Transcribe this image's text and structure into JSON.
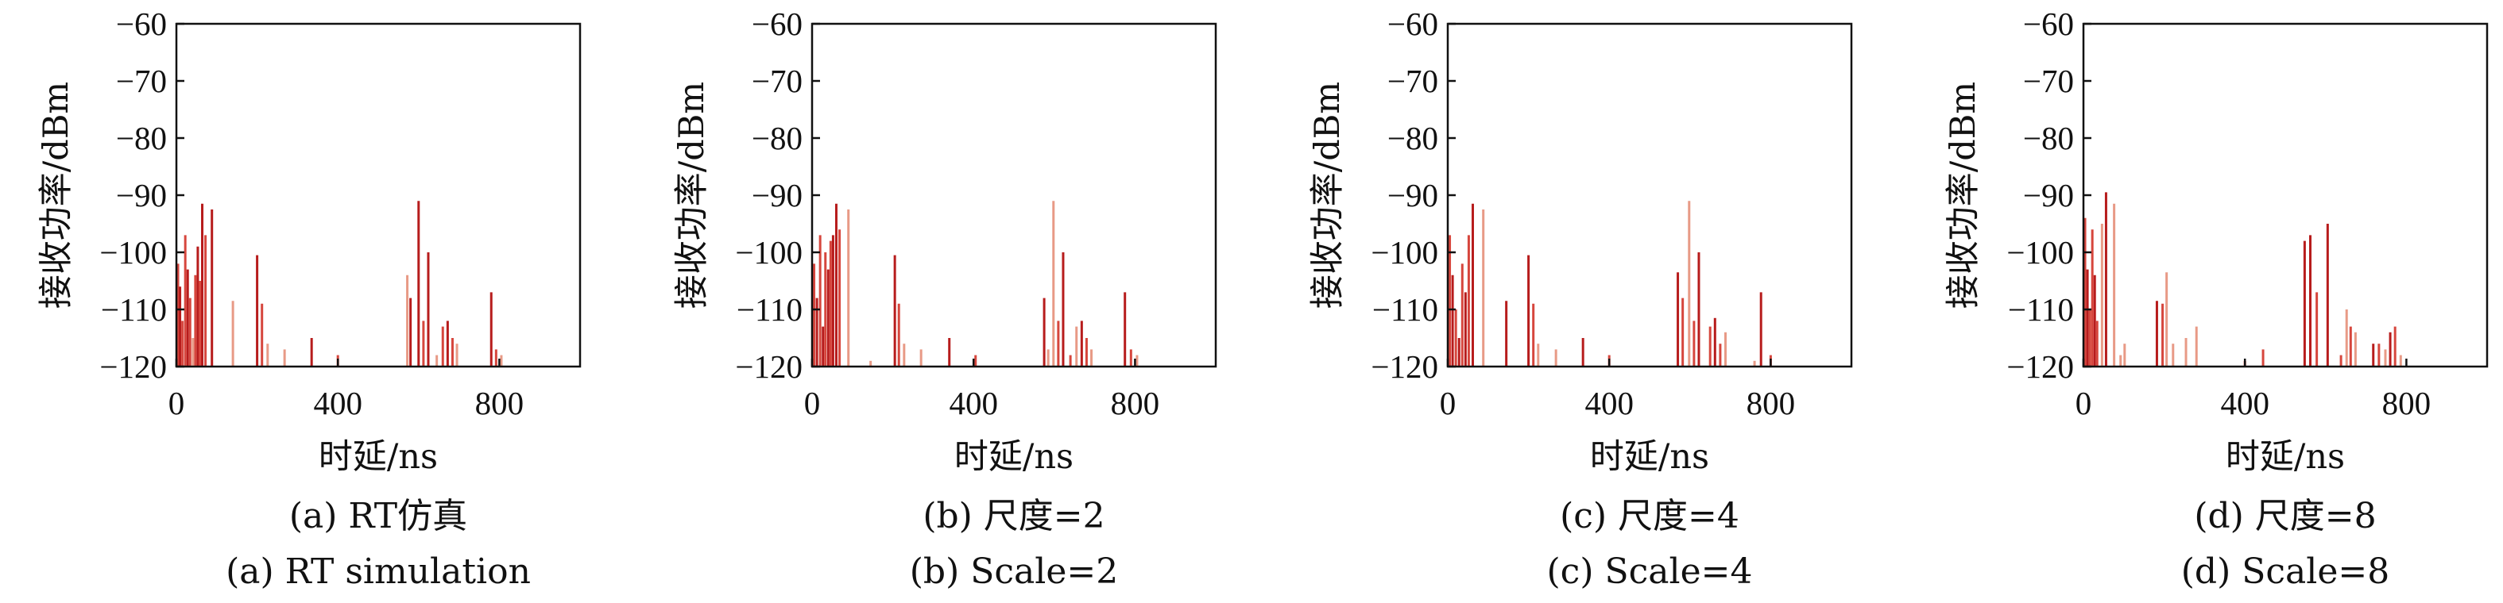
{
  "chart_data": [
    {
      "type": "bar",
      "xlabel": "时延/ns",
      "ylabel": "接收功率/dBm",
      "xlim": [
        0,
        1000
      ],
      "ylim": [
        -120,
        -60
      ],
      "xticks": [
        0,
        400,
        800
      ],
      "yticks": [
        -120,
        -110,
        -100,
        -90,
        -80,
        -70,
        -60
      ],
      "grid": false,
      "caption_cn": "(a) RT仿真",
      "caption_en": "(a) RT simulation",
      "colors": [
        "#d6463d",
        "#b71c1c",
        "#e89a86"
      ],
      "bars": [
        {
          "x": 4,
          "y": -102,
          "c": 0
        },
        {
          "x": 9,
          "y": -106,
          "c": 1
        },
        {
          "x": 15,
          "y": -112,
          "c": 0
        },
        {
          "x": 22,
          "y": -97,
          "c": 0
        },
        {
          "x": 28,
          "y": -103,
          "c": 1
        },
        {
          "x": 34,
          "y": -108,
          "c": 0
        },
        {
          "x": 41,
          "y": -115,
          "c": 2
        },
        {
          "x": 47,
          "y": -104,
          "c": 0
        },
        {
          "x": 53,
          "y": -99,
          "c": 1
        },
        {
          "x": 58,
          "y": -105,
          "c": 0
        },
        {
          "x": 64,
          "y": -91.5,
          "c": 1
        },
        {
          "x": 72,
          "y": -97,
          "c": 0
        },
        {
          "x": 88,
          "y": -92.5,
          "c": 1
        },
        {
          "x": 140,
          "y": -108.5,
          "c": 2
        },
        {
          "x": 200,
          "y": -100.5,
          "c": 1
        },
        {
          "x": 212,
          "y": -109,
          "c": 0
        },
        {
          "x": 226,
          "y": -116,
          "c": 2
        },
        {
          "x": 268,
          "y": -117,
          "c": 2
        },
        {
          "x": 335,
          "y": -115,
          "c": 1
        },
        {
          "x": 400,
          "y": -118,
          "c": 0
        },
        {
          "x": 572,
          "y": -104,
          "c": 2
        },
        {
          "x": 580,
          "y": -108,
          "c": 1
        },
        {
          "x": 600,
          "y": -91,
          "c": 1
        },
        {
          "x": 612,
          "y": -112,
          "c": 0
        },
        {
          "x": 624,
          "y": -100,
          "c": 1
        },
        {
          "x": 645,
          "y": -118,
          "c": 2
        },
        {
          "x": 660,
          "y": -113,
          "c": 0
        },
        {
          "x": 672,
          "y": -112,
          "c": 1
        },
        {
          "x": 684,
          "y": -115,
          "c": 0
        },
        {
          "x": 695,
          "y": -116,
          "c": 2
        },
        {
          "x": 780,
          "y": -107,
          "c": 1
        },
        {
          "x": 792,
          "y": -117,
          "c": 0
        },
        {
          "x": 805,
          "y": -118,
          "c": 2
        }
      ]
    },
    {
      "type": "bar",
      "xlabel": "时延/ns",
      "ylabel": "接收功率/dBm",
      "xlim": [
        0,
        1000
      ],
      "ylim": [
        -120,
        -60
      ],
      "xticks": [
        0,
        400,
        800
      ],
      "yticks": [
        -120,
        -110,
        -100,
        -90,
        -80,
        -70,
        -60
      ],
      "grid": false,
      "caption_cn": "(b) 尺度=2",
      "caption_en": "(b) Scale=2",
      "colors": [
        "#d6463d",
        "#b71c1c",
        "#e89a86"
      ],
      "bars": [
        {
          "x": 5,
          "y": -102,
          "c": 0
        },
        {
          "x": 12,
          "y": -108,
          "c": 1
        },
        {
          "x": 20,
          "y": -97,
          "c": 0
        },
        {
          "x": 27,
          "y": -113,
          "c": 1
        },
        {
          "x": 33,
          "y": -100,
          "c": 0
        },
        {
          "x": 40,
          "y": -103,
          "c": 1
        },
        {
          "x": 46,
          "y": -98,
          "c": 0
        },
        {
          "x": 52,
          "y": -97,
          "c": 1
        },
        {
          "x": 60,
          "y": -91.5,
          "c": 1
        },
        {
          "x": 68,
          "y": -96,
          "c": 0
        },
        {
          "x": 90,
          "y": -92.5,
          "c": 2
        },
        {
          "x": 145,
          "y": -119,
          "c": 2
        },
        {
          "x": 205,
          "y": -100.5,
          "c": 1
        },
        {
          "x": 215,
          "y": -109,
          "c": 0
        },
        {
          "x": 228,
          "y": -116,
          "c": 2
        },
        {
          "x": 270,
          "y": -117,
          "c": 2
        },
        {
          "x": 340,
          "y": -115,
          "c": 1
        },
        {
          "x": 405,
          "y": -118,
          "c": 0
        },
        {
          "x": 575,
          "y": -108,
          "c": 1
        },
        {
          "x": 585,
          "y": -117,
          "c": 2
        },
        {
          "x": 598,
          "y": -91,
          "c": 2
        },
        {
          "x": 610,
          "y": -112,
          "c": 0
        },
        {
          "x": 622,
          "y": -100,
          "c": 1
        },
        {
          "x": 640,
          "y": -118,
          "c": 0
        },
        {
          "x": 655,
          "y": -113,
          "c": 2
        },
        {
          "x": 668,
          "y": -112,
          "c": 1
        },
        {
          "x": 680,
          "y": -115,
          "c": 0
        },
        {
          "x": 692,
          "y": -117,
          "c": 2
        },
        {
          "x": 775,
          "y": -107,
          "c": 1
        },
        {
          "x": 790,
          "y": -117,
          "c": 0
        },
        {
          "x": 805,
          "y": -118,
          "c": 2
        }
      ]
    },
    {
      "type": "bar",
      "xlabel": "时延/ns",
      "ylabel": "接收功率/dBm",
      "xlim": [
        0,
        1000
      ],
      "ylim": [
        -120,
        -60
      ],
      "xticks": [
        0,
        400,
        800
      ],
      "yticks": [
        -120,
        -110,
        -100,
        -90,
        -80,
        -70,
        -60
      ],
      "grid": false,
      "caption_cn": "(c) 尺度=4",
      "caption_en": "(c) Scale=4",
      "colors": [
        "#d6463d",
        "#b71c1c",
        "#e89a86"
      ],
      "bars": [
        {
          "x": 5,
          "y": -97,
          "c": 0
        },
        {
          "x": 12,
          "y": -104,
          "c": 1
        },
        {
          "x": 20,
          "y": -110,
          "c": 0
        },
        {
          "x": 28,
          "y": -115,
          "c": 1
        },
        {
          "x": 36,
          "y": -102,
          "c": 0
        },
        {
          "x": 44,
          "y": -107,
          "c": 1
        },
        {
          "x": 52,
          "y": -97,
          "c": 0
        },
        {
          "x": 62,
          "y": -91.5,
          "c": 1
        },
        {
          "x": 88,
          "y": -92.5,
          "c": 2
        },
        {
          "x": 145,
          "y": -108.5,
          "c": 1
        },
        {
          "x": 200,
          "y": -100.5,
          "c": 1
        },
        {
          "x": 212,
          "y": -109,
          "c": 0
        },
        {
          "x": 224,
          "y": -116,
          "c": 2
        },
        {
          "x": 268,
          "y": -117,
          "c": 2
        },
        {
          "x": 335,
          "y": -115,
          "c": 1
        },
        {
          "x": 400,
          "y": -118,
          "c": 0
        },
        {
          "x": 570,
          "y": -103.5,
          "c": 1
        },
        {
          "x": 582,
          "y": -108,
          "c": 0
        },
        {
          "x": 598,
          "y": -91,
          "c": 2
        },
        {
          "x": 610,
          "y": -112,
          "c": 0
        },
        {
          "x": 622,
          "y": -100,
          "c": 1
        },
        {
          "x": 650,
          "y": -113,
          "c": 0
        },
        {
          "x": 662,
          "y": -111.5,
          "c": 1
        },
        {
          "x": 675,
          "y": -116,
          "c": 0
        },
        {
          "x": 688,
          "y": -114,
          "c": 2
        },
        {
          "x": 760,
          "y": -119,
          "c": 2
        },
        {
          "x": 776,
          "y": -107,
          "c": 1
        },
        {
          "x": 800,
          "y": -118,
          "c": 0
        }
      ]
    },
    {
      "type": "bar",
      "xlabel": "时延/ns",
      "ylabel": "接收功率/dBm",
      "xlim": [
        0,
        1000
      ],
      "ylim": [
        -120,
        -60
      ],
      "xticks": [
        0,
        400,
        800
      ],
      "yticks": [
        -120,
        -110,
        -100,
        -90,
        -80,
        -70,
        -60
      ],
      "grid": false,
      "caption_cn": "(d) 尺度=8",
      "caption_en": "(d) Scale=8",
      "colors": [
        "#d6463d",
        "#b71c1c",
        "#e89a86"
      ],
      "bars": [
        {
          "x": 4,
          "y": -94,
          "c": 0
        },
        {
          "x": 10,
          "y": -103,
          "c": 1
        },
        {
          "x": 16,
          "y": -110,
          "c": 0
        },
        {
          "x": 22,
          "y": -96,
          "c": 0
        },
        {
          "x": 28,
          "y": -104,
          "c": 1
        },
        {
          "x": 34,
          "y": -112,
          "c": 0
        },
        {
          "x": 46,
          "y": -95,
          "c": 2
        },
        {
          "x": 56,
          "y": -89.5,
          "c": 1
        },
        {
          "x": 76,
          "y": -91.5,
          "c": 2
        },
        {
          "x": 92,
          "y": -118,
          "c": 2
        },
        {
          "x": 102,
          "y": -116,
          "c": 2
        },
        {
          "x": 182,
          "y": -108.5,
          "c": 1
        },
        {
          "x": 196,
          "y": -109,
          "c": 0
        },
        {
          "x": 206,
          "y": -103.5,
          "c": 2
        },
        {
          "x": 222,
          "y": -116,
          "c": 2
        },
        {
          "x": 254,
          "y": -115,
          "c": 2
        },
        {
          "x": 280,
          "y": -113,
          "c": 2
        },
        {
          "x": 400,
          "y": -119,
          "c": 0
        },
        {
          "x": 445,
          "y": -117,
          "c": 0
        },
        {
          "x": 548,
          "y": -98,
          "c": 1
        },
        {
          "x": 562,
          "y": -97,
          "c": 1
        },
        {
          "x": 578,
          "y": -107,
          "c": 0
        },
        {
          "x": 605,
          "y": -95,
          "c": 1
        },
        {
          "x": 638,
          "y": -118,
          "c": 0
        },
        {
          "x": 652,
          "y": -110,
          "c": 2
        },
        {
          "x": 662,
          "y": -113,
          "c": 0
        },
        {
          "x": 674,
          "y": -114,
          "c": 2
        },
        {
          "x": 718,
          "y": -116,
          "c": 1
        },
        {
          "x": 732,
          "y": -116,
          "c": 0
        },
        {
          "x": 748,
          "y": -117,
          "c": 2
        },
        {
          "x": 760,
          "y": -114,
          "c": 1
        },
        {
          "x": 772,
          "y": -113,
          "c": 0
        },
        {
          "x": 786,
          "y": -118,
          "c": 2
        }
      ]
    }
  ]
}
